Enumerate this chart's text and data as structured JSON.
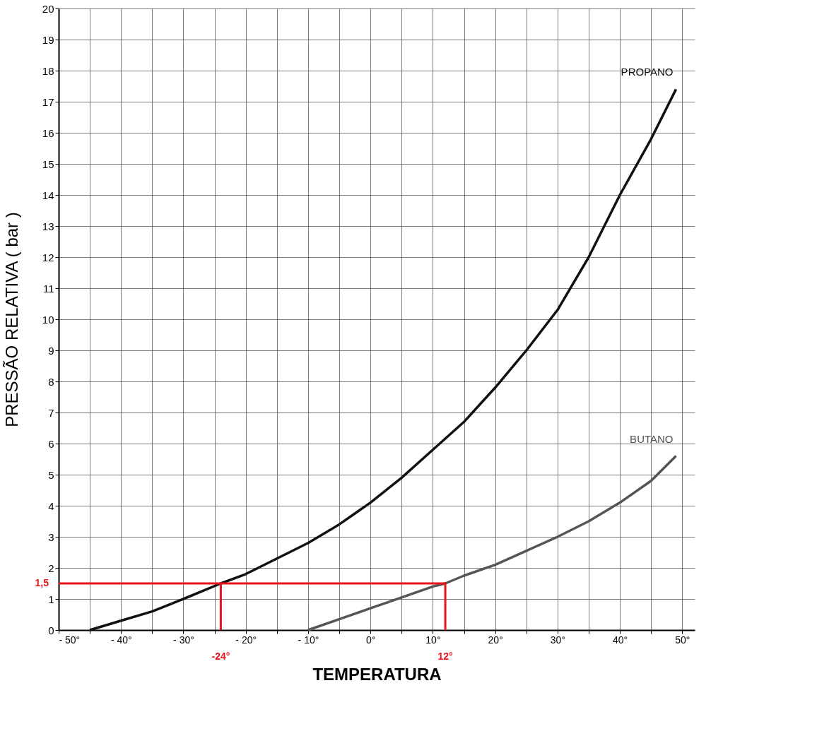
{
  "chart_data": {
    "type": "line",
    "xlabel": "TEMPERATURA",
    "ylabel": "PRESSÃO RELATIVA  ( bar )",
    "xlim": [
      -50,
      52
    ],
    "ylim": [
      0,
      20
    ],
    "xticks": [
      {
        "value": -50,
        "label": "- 50°"
      },
      {
        "value": -45,
        "label": null
      },
      {
        "value": -40,
        "label": "- 40°"
      },
      {
        "value": -35,
        "label": null
      },
      {
        "value": -30,
        "label": "- 30°"
      },
      {
        "value": -25,
        "label": null
      },
      {
        "value": -20,
        "label": "- 20°"
      },
      {
        "value": -15,
        "label": null
      },
      {
        "value": -10,
        "label": "- 10°"
      },
      {
        "value": -5,
        "label": null
      },
      {
        "value": 0,
        "label": "0°"
      },
      {
        "value": 5,
        "label": null
      },
      {
        "value": 10,
        "label": "10°"
      },
      {
        "value": 15,
        "label": null
      },
      {
        "value": 20,
        "label": "20°"
      },
      {
        "value": 25,
        "label": null
      },
      {
        "value": 30,
        "label": "30°"
      },
      {
        "value": 35,
        "label": null
      },
      {
        "value": 40,
        "label": "40°"
      },
      {
        "value": 45,
        "label": null
      },
      {
        "value": 50,
        "label": "50°"
      }
    ],
    "yticks": [
      0,
      1,
      2,
      3,
      4,
      5,
      6,
      7,
      8,
      9,
      10,
      11,
      12,
      13,
      14,
      15,
      16,
      17,
      18,
      19,
      20
    ],
    "grid": true,
    "line_style": "solid",
    "marker": "none",
    "series": [
      {
        "name": "PROPANO",
        "color": "#111111",
        "x": [
          -45,
          -40,
          -35,
          -30,
          -24,
          -20,
          -15,
          -10,
          -5,
          0,
          5,
          10,
          15,
          20,
          25,
          30,
          35,
          40,
          45,
          49
        ],
        "values": [
          0,
          0.3,
          0.6,
          1.0,
          1.5,
          1.8,
          2.3,
          2.8,
          3.4,
          4.1,
          4.9,
          5.8,
          6.7,
          7.8,
          9.0,
          10.3,
          12.0,
          14.0,
          15.8,
          17.4
        ]
      },
      {
        "name": "BUTANO",
        "color": "#555555",
        "x": [
          -10,
          -5,
          0,
          5,
          10,
          12,
          15,
          20,
          25,
          30,
          35,
          40,
          45,
          49
        ],
        "values": [
          0,
          0.35,
          0.7,
          1.05,
          1.4,
          1.5,
          1.75,
          2.1,
          2.55,
          3.0,
          3.5,
          4.1,
          4.8,
          5.6
        ]
      },
      {
        "color": "#e8141c",
        "x": [
          -50,
          12,
          12
        ],
        "values": [
          1.5,
          1.5,
          0
        ]
      },
      {
        "color": "#e8141c",
        "x": [
          -24,
          -24
        ],
        "values": [
          1.5,
          0
        ]
      }
    ],
    "annotations": [
      {
        "text": "1,5",
        "x": -50,
        "y": 1.5
      },
      {
        "text": "-24°",
        "x": -24,
        "y": 0
      },
      {
        "text": "12°",
        "x": 12,
        "y": 0
      }
    ]
  }
}
